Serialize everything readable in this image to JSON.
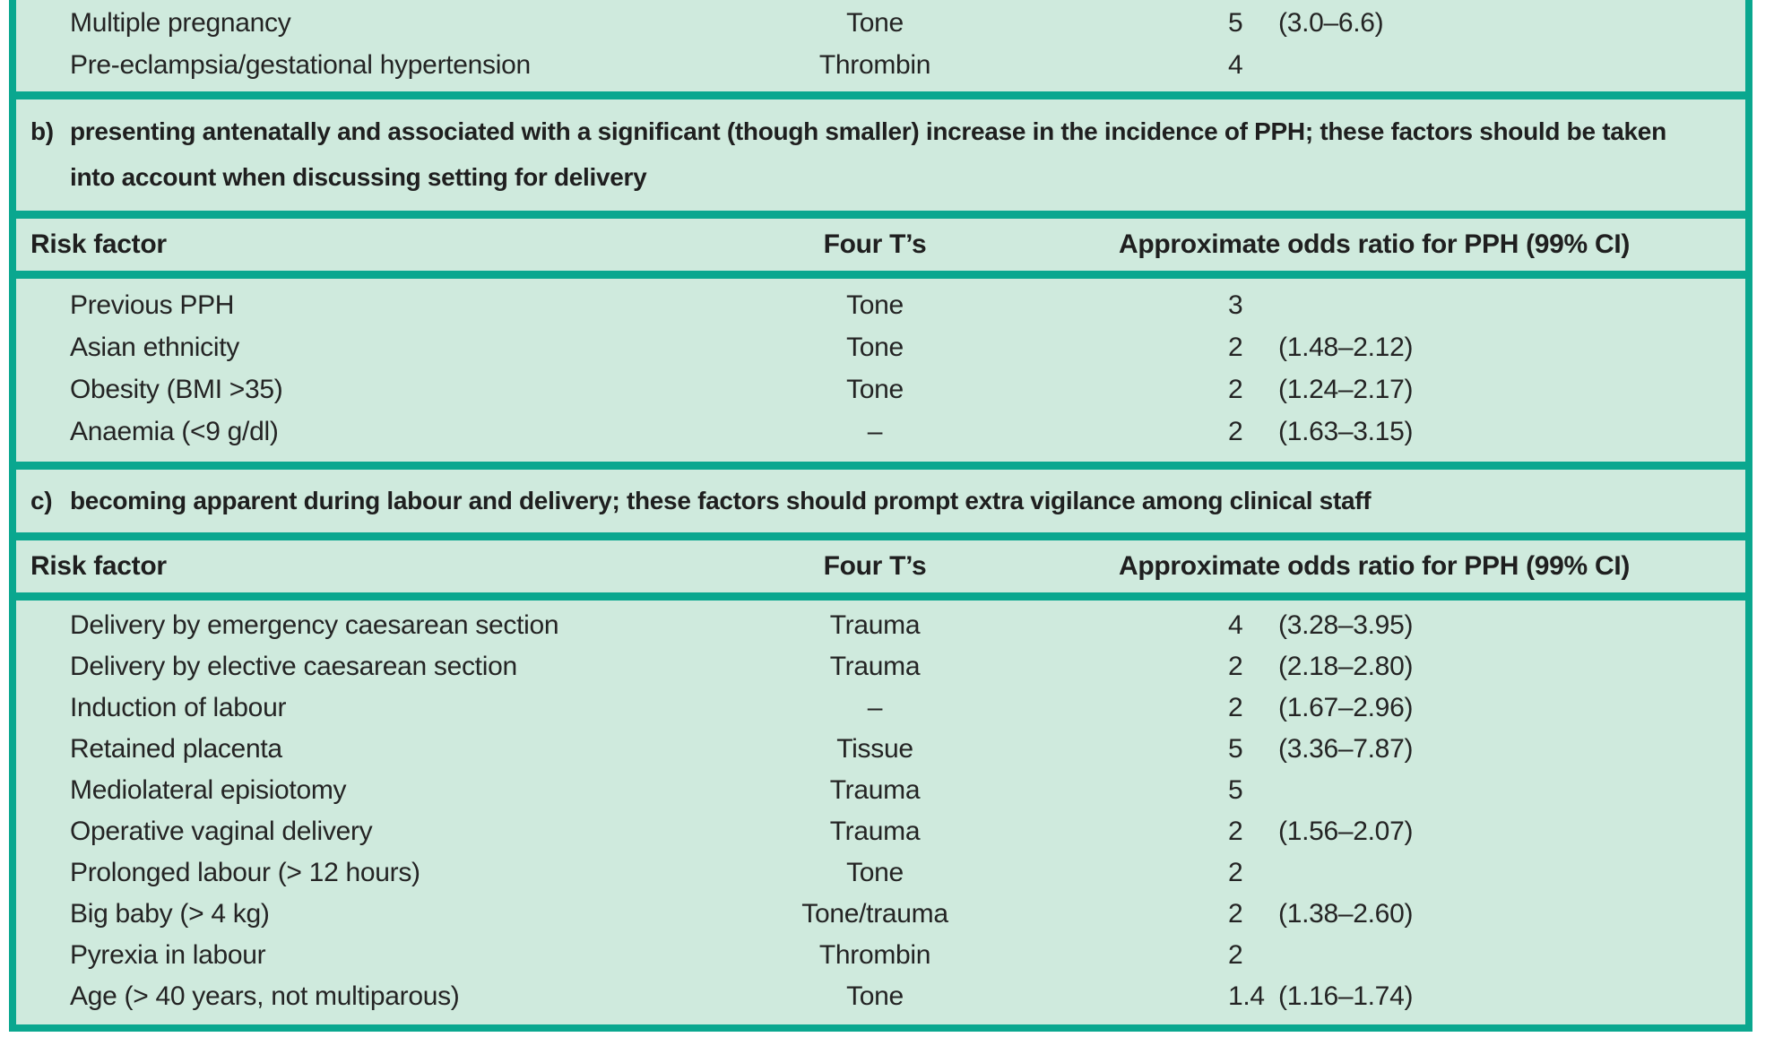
{
  "theme": {
    "teal_border": "#0aa78f",
    "bullet_teal": "#14a38c",
    "mint_background": "#cfeadd",
    "text_color": "#242424"
  },
  "table": {
    "section_a_partial": {
      "rows": [
        {
          "label": "Multiple pregnancy",
          "four_t": "Tone",
          "odds": "5",
          "ci": "(3.0–6.6)"
        },
        {
          "label": "Pre-eclampsia/gestational hypertension",
          "four_t": "Thrombin",
          "odds": "4",
          "ci": ""
        }
      ]
    },
    "section_b": {
      "marker": "b)",
      "description_lines": [
        "presenting antenatally and associated with a significant (though smaller) increase in the incidence of PPH; these factors should be taken",
        "into account when discussing setting for delivery"
      ],
      "headers": {
        "risk_factor": "Risk factor",
        "four_t": "Four T’s",
        "odds": "Approximate odds ratio for PPH (99% CI)"
      },
      "rows": [
        {
          "label": "Previous PPH",
          "four_t": "Tone",
          "odds": "3",
          "ci": ""
        },
        {
          "label": "Asian ethnicity",
          "four_t": "Tone",
          "odds": "2",
          "ci": "(1.48–2.12)"
        },
        {
          "label": "Obesity (BMI >35)",
          "four_t": "Tone",
          "odds": "2",
          "ci": "(1.24–2.17)"
        },
        {
          "label": "Anaemia (<9 g/dl)",
          "four_t": "–",
          "odds": "2",
          "ci": "(1.63–3.15)"
        }
      ]
    },
    "section_c": {
      "marker": "c)",
      "description_lines": [
        "becoming apparent during labour and delivery; these factors should prompt extra vigilance among clinical staff"
      ],
      "headers": {
        "risk_factor": "Risk factor",
        "four_t": "Four T’s",
        "odds": "Approximate odds ratio for PPH (99% CI)"
      },
      "rows": [
        {
          "label": "Delivery by emergency caesarean section",
          "four_t": "Trauma",
          "odds": "4",
          "ci": "(3.28–3.95)"
        },
        {
          "label": "Delivery by elective caesarean section",
          "four_t": "Trauma",
          "odds": "2",
          "ci": "(2.18–2.80)"
        },
        {
          "label": "Induction of labour",
          "four_t": "–",
          "odds": "2",
          "ci": "(1.67–2.96)"
        },
        {
          "label": "Retained placenta",
          "four_t": "Tissue",
          "odds": "5",
          "ci": "(3.36–7.87)"
        },
        {
          "label": "Mediolateral episiotomy",
          "four_t": "Trauma",
          "odds": "5",
          "ci": ""
        },
        {
          "label": "Operative vaginal delivery",
          "four_t": "Trauma",
          "odds": "2",
          "ci": "(1.56–2.07)"
        },
        {
          "label": "Prolonged labour (> 12 hours)",
          "four_t": "Tone",
          "odds": "2",
          "ci": ""
        },
        {
          "label": "Big baby (> 4 kg)",
          "four_t": "Tone/trauma",
          "odds": "2",
          "ci": "(1.38–2.60)"
        },
        {
          "label": "Pyrexia in labour",
          "four_t": "Thrombin",
          "odds": "2",
          "ci": ""
        },
        {
          "label": "Age (> 40 years, not multiparous)",
          "four_t": "Tone",
          "odds": "1.4",
          "ci": "(1.16–1.74)"
        }
      ]
    }
  }
}
